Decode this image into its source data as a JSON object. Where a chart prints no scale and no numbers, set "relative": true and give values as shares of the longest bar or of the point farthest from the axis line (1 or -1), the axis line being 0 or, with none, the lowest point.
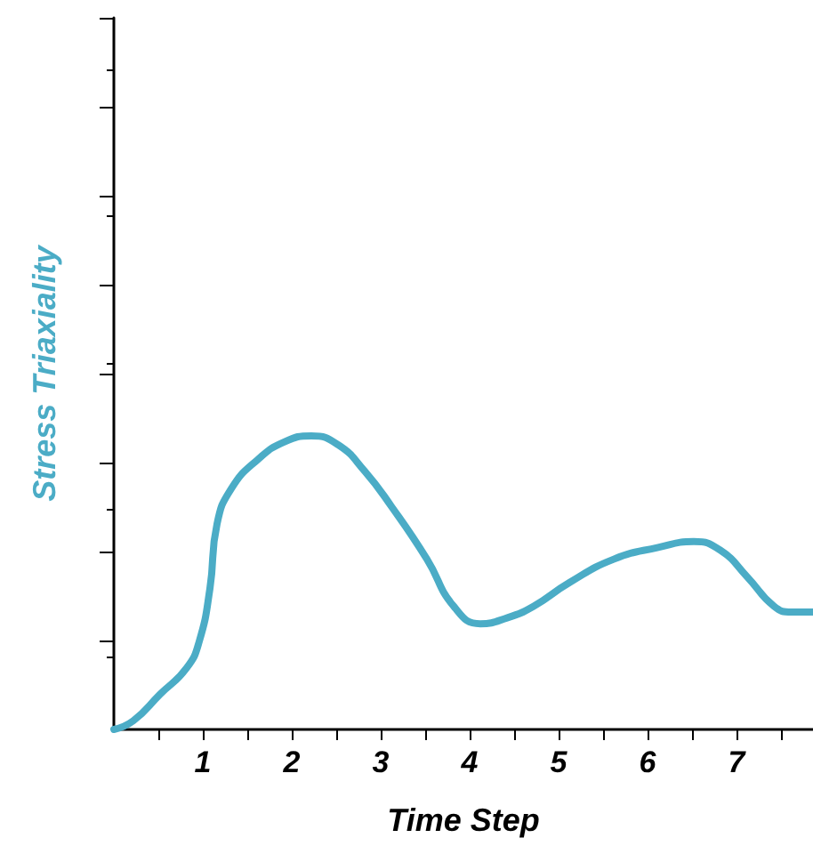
{
  "chart_data": {
    "type": "line",
    "relative": true,
    "xlabel": "Time Step",
    "ylabel": "Stress Triaxiality",
    "xlim": [
      0,
      7.86
    ],
    "xticks": [
      {
        "value": 0.5,
        "label": null
      },
      1,
      {
        "value": 1.5,
        "label": null
      },
      2,
      {
        "value": 2.5,
        "label": null
      },
      3,
      {
        "value": 3.5,
        "label": null
      },
      4,
      {
        "value": 4.5,
        "label": null
      },
      5,
      {
        "value": 5.5,
        "label": null
      },
      6,
      {
        "value": 6.5,
        "label": null
      },
      7,
      {
        "value": 7.5,
        "label": null
      }
    ],
    "marker": "none",
    "line_style": "solid",
    "series": [
      {
        "color": "#4bacc6",
        "x": [
          0,
          0.22,
          0.52,
          0.82,
          0.96,
          1.08,
          1.16,
          1.32,
          1.62,
          1.92,
          2.22,
          2.52,
          2.82,
          3.12,
          3.52,
          3.82,
          4.12,
          4.42,
          4.72,
          5.12,
          5.62,
          6.12,
          6.52,
          6.82,
          7.12,
          7.42,
          7.62,
          7.86
        ],
        "values": [
          0,
          0.03,
          0.12,
          0.21,
          0.3,
          0.48,
          0.7,
          0.82,
          0.92,
          0.98,
          1,
          0.97,
          0.88,
          0.76,
          0.58,
          0.42,
          0.36,
          0.38,
          0.42,
          0.5,
          0.58,
          0.62,
          0.64,
          0.61,
          0.52,
          0.42,
          0.4,
          0.4
        ]
      }
    ]
  }
}
